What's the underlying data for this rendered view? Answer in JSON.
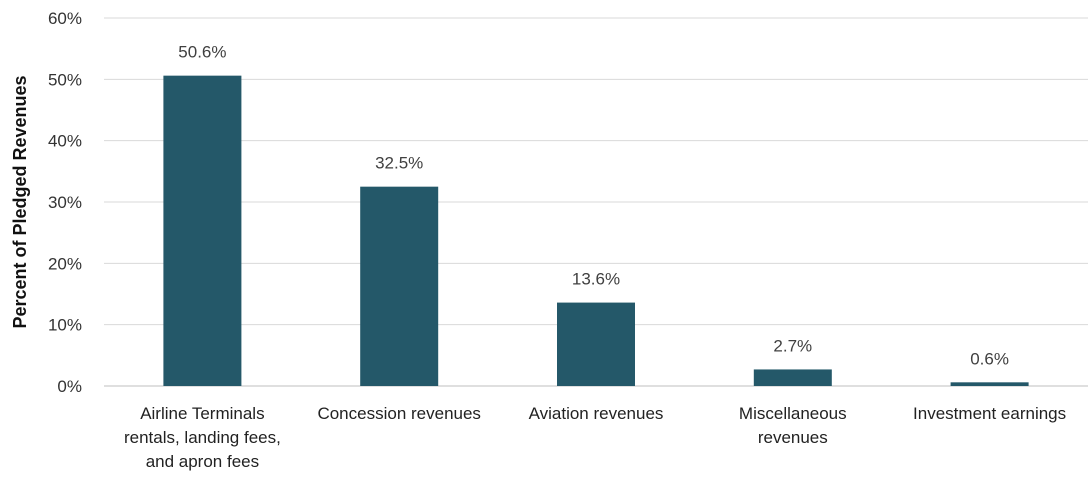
{
  "chart_data": {
    "type": "bar",
    "title": "",
    "xlabel": "",
    "ylabel": "Percent of Pledged Revenues",
    "ylim": [
      0,
      60
    ],
    "yticks": [
      "0%",
      "10%",
      "20%",
      "30%",
      "40%",
      "50%",
      "60%"
    ],
    "grid": "horizontal",
    "legend": "none",
    "bar_color": "#245869",
    "categories": [
      [
        "Airline Terminals",
        "rentals, landing fees,",
        "and apron fees"
      ],
      [
        "Concession revenues"
      ],
      [
        "Aviation revenues"
      ],
      [
        "Miscellaneous",
        "revenues"
      ],
      [
        "Investment earnings"
      ]
    ],
    "values": [
      50.6,
      32.5,
      13.6,
      2.7,
      0.6
    ],
    "data_labels": [
      "50.6%",
      "32.5%",
      "13.6%",
      "2.7%",
      "0.6%"
    ]
  }
}
